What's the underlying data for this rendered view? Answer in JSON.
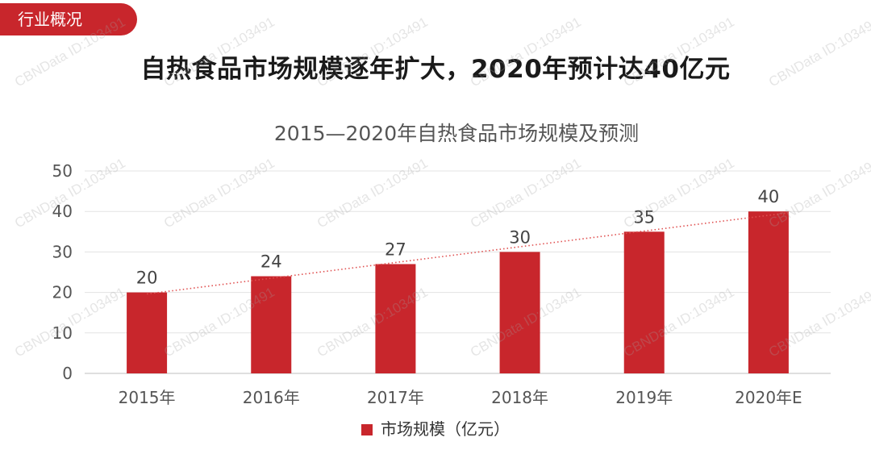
{
  "section_tab": "行业概况",
  "headline": "自热食品市场规模逐年扩大，2020年预计达40亿元",
  "watermark": "CBNData ID:103491",
  "colors": {
    "bar": "#c8262c",
    "accent": "#c8262c",
    "trendline": "#e05050"
  },
  "chart_data": {
    "type": "bar",
    "title": "2015—2020年自热食品市场规模及预测",
    "categories": [
      "2015年",
      "2016年",
      "2017年",
      "2018年",
      "2019年",
      "2020年E"
    ],
    "series": [
      {
        "name": "市场规模（亿元）",
        "values": [
          20,
          24,
          27,
          30,
          35,
          40
        ]
      }
    ],
    "data_labels": [
      "20",
      "24",
      "27",
      "30",
      "35",
      "40"
    ],
    "yticks": [
      "0",
      "10",
      "20",
      "30",
      "40",
      "50"
    ],
    "ylim": [
      0,
      50
    ],
    "grid": true,
    "trendline": "linear, dotted",
    "legend": "bottom"
  }
}
